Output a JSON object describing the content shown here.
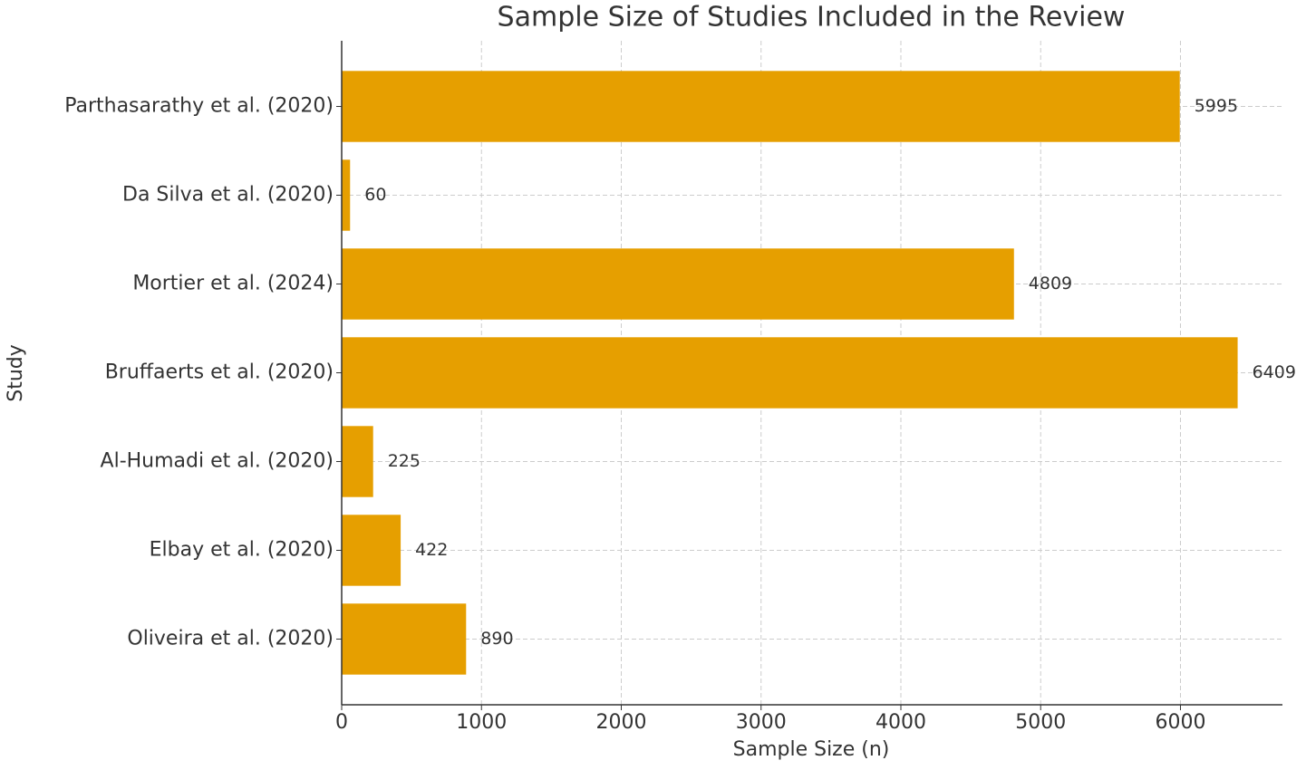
{
  "chart_data": {
    "type": "barh",
    "title": "Sample Size of Studies Included in the Review",
    "x_label": "Sample Size (n)",
    "y_label": "Study",
    "categories": [
      "Parthasarathy et al. (2020)",
      "Da Silva et al. (2020)",
      "Mortier et al. (2024)",
      "Bruffaerts et al. (2020)",
      "Al-Humadi et al. (2020)",
      "Elbay et al. (2020)",
      "Oliveira et al. (2020)"
    ],
    "values": [
      5995,
      60,
      4809,
      6409,
      225,
      422,
      890
    ],
    "color": "#e69f00",
    "xlim": [
      0,
      6729.45
    ],
    "xticks": [
      0,
      1000,
      2000,
      3000,
      4000,
      5000,
      6000
    ],
    "grid": true
  }
}
